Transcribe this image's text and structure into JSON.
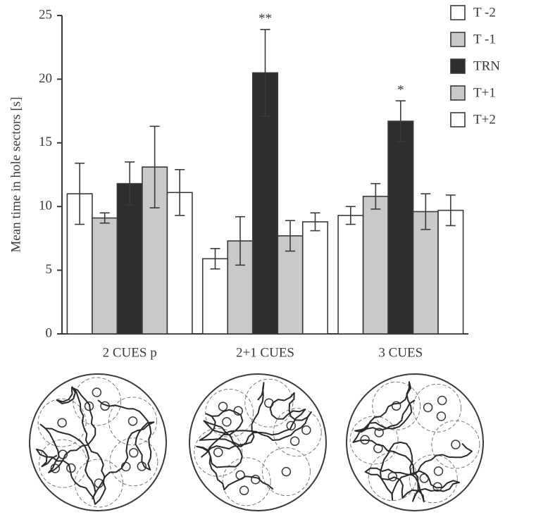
{
  "chart_data": {
    "type": "bar",
    "y_label": "Mean time in hole sectors [s]",
    "categories": [
      "2 CUES p",
      "2+1 CUES",
      "3 CUES"
    ],
    "ylim": [
      0,
      25
    ],
    "yticks": [
      0,
      5,
      10,
      15,
      20,
      25
    ],
    "series": [
      {
        "name": "T -2",
        "color": "#ffffff",
        "values": [
          11.0,
          5.9,
          9.3
        ],
        "errors": [
          2.4,
          0.8,
          0.7
        ]
      },
      {
        "name": "T -1",
        "color": "#c9c9c9",
        "values": [
          9.1,
          7.3,
          10.8
        ],
        "errors": [
          0.4,
          1.9,
          1.0
        ]
      },
      {
        "name": "TRN",
        "color": "#2e2e2e",
        "values": [
          11.8,
          20.5,
          16.7
        ],
        "errors": [
          1.7,
          3.4,
          1.6
        ],
        "significance": [
          null,
          "**",
          "*"
        ]
      },
      {
        "name": "T+1",
        "color": "#c9c9c9",
        "values": [
          13.1,
          7.7,
          9.6
        ],
        "errors": [
          3.2,
          1.2,
          1.4
        ]
      },
      {
        "name": "T+2",
        "color": "#ffffff",
        "values": [
          11.1,
          8.8,
          9.7
        ],
        "errors": [
          1.8,
          0.7,
          1.2
        ]
      }
    ]
  }
}
